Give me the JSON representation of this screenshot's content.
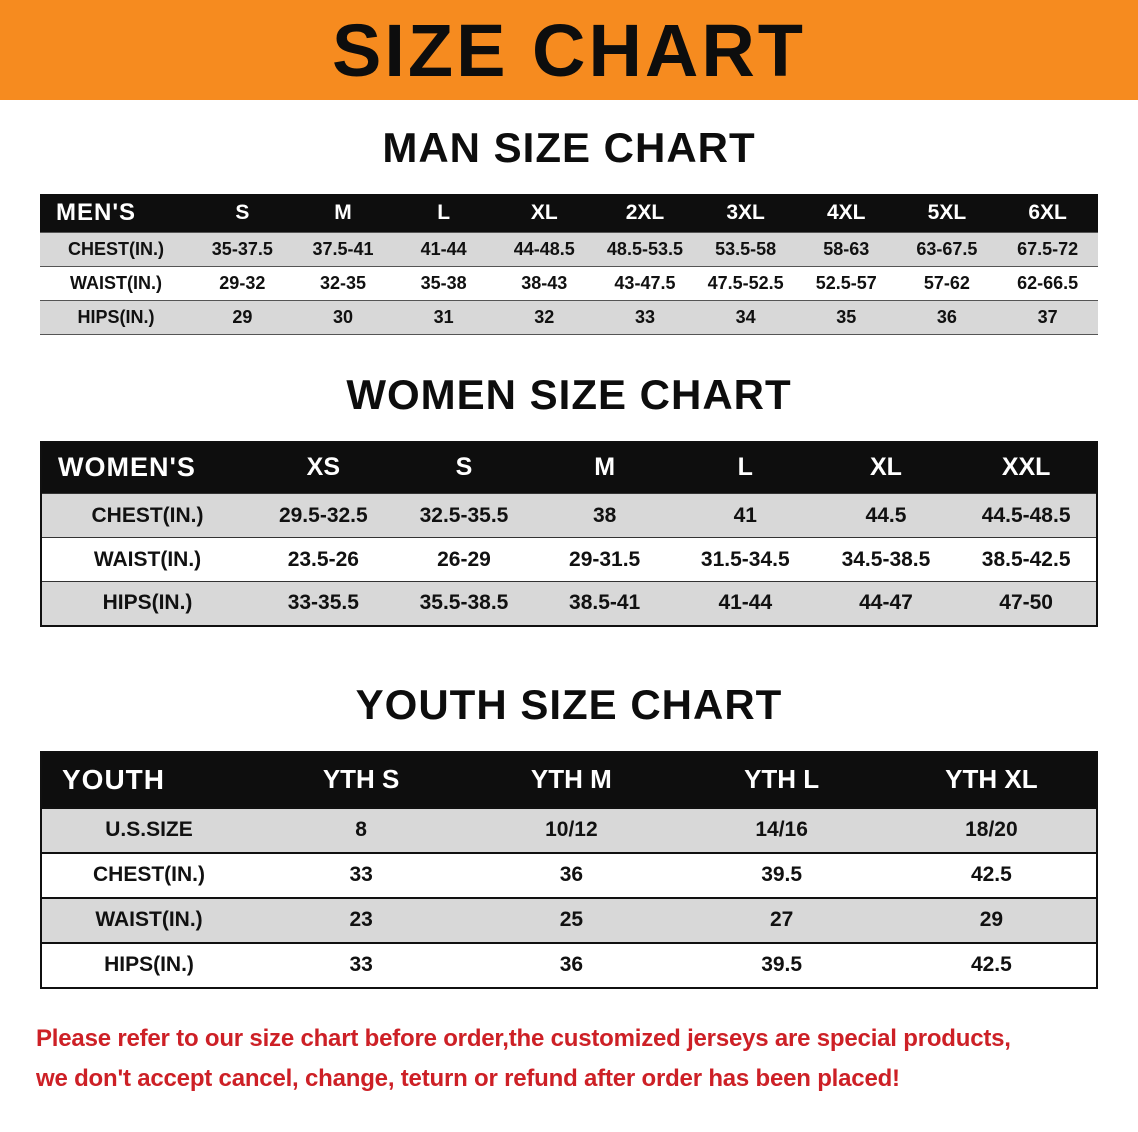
{
  "banner": {
    "title": "SIZE CHART"
  },
  "sections": [
    {
      "heading": "MAN SIZE CHART",
      "table": {
        "header": [
          "MEN'S",
          "S",
          "M",
          "L",
          "XL",
          "2XL",
          "3XL",
          "4XL",
          "5XL",
          "6XL"
        ],
        "rows": [
          [
            "CHEST(IN.)",
            "35-37.5",
            "37.5-41",
            "41-44",
            "44-48.5",
            "48.5-53.5",
            "53.5-58",
            "58-63",
            "63-67.5",
            "67.5-72"
          ],
          [
            "WAIST(IN.)",
            "29-32",
            "32-35",
            "35-38",
            "38-43",
            "43-47.5",
            "47.5-52.5",
            "52.5-57",
            "57-62",
            "62-66.5"
          ],
          [
            "HIPS(IN.)",
            "29",
            "30",
            "31",
            "32",
            "33",
            "34",
            "35",
            "36",
            "37"
          ]
        ]
      }
    },
    {
      "heading": "WOMEN SIZE CHART",
      "table": {
        "header": [
          "WOMEN'S",
          "XS",
          "S",
          "M",
          "L",
          "XL",
          "XXL"
        ],
        "rows": [
          [
            "CHEST(IN.)",
            "29.5-32.5",
            "32.5-35.5",
            "38",
            "41",
            "44.5",
            "44.5-48.5"
          ],
          [
            "WAIST(IN.)",
            "23.5-26",
            "26-29",
            "29-31.5",
            "31.5-34.5",
            "34.5-38.5",
            "38.5-42.5"
          ],
          [
            "HIPS(IN.)",
            "33-35.5",
            "35.5-38.5",
            "38.5-41",
            "41-44",
            "44-47",
            "47-50"
          ]
        ]
      }
    },
    {
      "heading": "YOUTH SIZE CHART",
      "table": {
        "header": [
          "YOUTH",
          "YTH S",
          "YTH M",
          "YTH L",
          "YTH XL"
        ],
        "rows": [
          [
            "U.S.SIZE",
            "8",
            "10/12",
            "14/16",
            "18/20"
          ],
          [
            "CHEST(IN.)",
            "33",
            "36",
            "39.5",
            "42.5"
          ],
          [
            "WAIST(IN.)",
            "23",
            "25",
            "27",
            "29"
          ],
          [
            "HIPS(IN.)",
            "33",
            "36",
            "39.5",
            "42.5"
          ]
        ]
      }
    }
  ],
  "footer": {
    "line1": "Please refer to our size chart before order,the customized jerseys are special products,",
    "line2": "we don't accept cancel, change, teturn or refund after order has been placed!"
  },
  "colors": {
    "banner_orange": "#f68b1f",
    "table_header_black": "#0e0e0e",
    "row_gray": "#d8d8d8",
    "disclaimer_red": "#cd2026"
  }
}
